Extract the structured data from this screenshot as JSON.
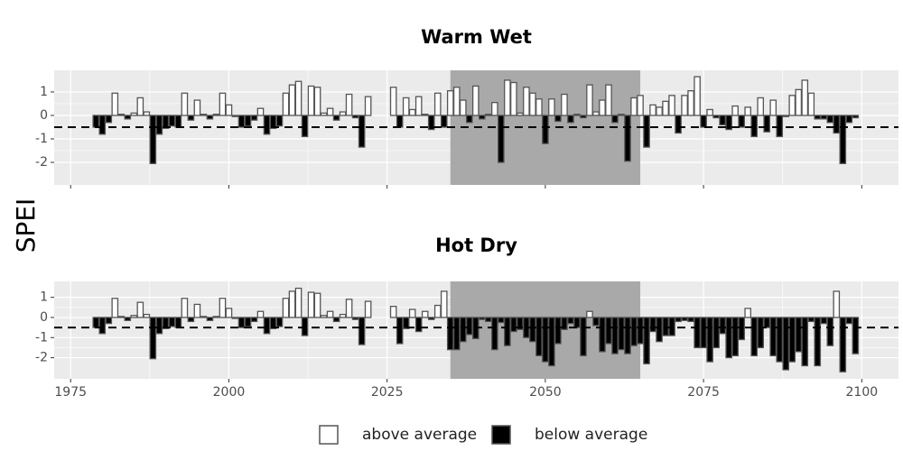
{
  "y_label": "SPEI",
  "legend": [
    {
      "name": "above average",
      "color": "#ffffff"
    },
    {
      "name": "below average",
      "color": "#000000"
    }
  ],
  "chart_data": [
    {
      "type": "bar",
      "title": "Warm Wet",
      "x": [
        1979,
        1980,
        1981,
        1982,
        1983,
        1984,
        1985,
        1986,
        1987,
        1988,
        1989,
        1990,
        1991,
        1992,
        1993,
        1994,
        1995,
        1996,
        1997,
        1998,
        1999,
        2000,
        2001,
        2002,
        2003,
        2004,
        2005,
        2006,
        2007,
        2008,
        2009,
        2010,
        2011,
        2012,
        2013,
        2014,
        2015,
        2016,
        2017,
        2018,
        2019,
        2020,
        2021,
        2022,
        2026,
        2027,
        2028,
        2029,
        2030,
        2031,
        2032,
        2033,
        2034,
        2035,
        2036,
        2037,
        2038,
        2039,
        2040,
        2041,
        2042,
        2043,
        2044,
        2045,
        2046,
        2047,
        2048,
        2049,
        2050,
        2051,
        2052,
        2053,
        2054,
        2055,
        2056,
        2057,
        2058,
        2059,
        2060,
        2061,
        2062,
        2063,
        2064,
        2065,
        2066,
        2067,
        2068,
        2069,
        2070,
        2071,
        2072,
        2073,
        2074,
        2075,
        2076,
        2077,
        2078,
        2079,
        2080,
        2081,
        2082,
        2083,
        2084,
        2085,
        2086,
        2087,
        2088,
        2089,
        2090,
        2091,
        2092,
        2093,
        2094,
        2095,
        2096,
        2097,
        2098,
        2099
      ],
      "values": [
        -0.5,
        -0.8,
        -0.3,
        0.95,
        0.05,
        -0.15,
        0.1,
        0.75,
        0.15,
        -2.05,
        -0.8,
        -0.55,
        -0.45,
        -0.5,
        0.95,
        -0.2,
        0.65,
        0.05,
        -0.15,
        0.05,
        0.95,
        0.45,
        -0.05,
        -0.5,
        -0.45,
        -0.2,
        0.3,
        -0.8,
        -0.55,
        -0.45,
        0.95,
        1.3,
        1.45,
        -0.9,
        1.25,
        1.2,
        0.1,
        0.3,
        -0.2,
        0.15,
        0.9,
        -0.1,
        -1.35,
        0.8,
        1.2,
        -0.5,
        0.75,
        0.25,
        0.8,
        0.05,
        -0.6,
        0.95,
        -0.5,
        1.05,
        1.2,
        0.65,
        -0.3,
        1.25,
        -0.15,
        0.05,
        0.55,
        -2.0,
        1.5,
        1.4,
        0.1,
        1.2,
        0.95,
        0.7,
        -1.2,
        0.7,
        -0.25,
        0.9,
        -0.3,
        0.05,
        -0.1,
        1.3,
        0.15,
        0.65,
        1.3,
        -0.3,
        0.05,
        -1.95,
        0.75,
        0.85,
        -1.35,
        0.45,
        0.35,
        0.6,
        0.85,
        -0.75,
        0.85,
        1.05,
        1.65,
        -0.5,
        0.25,
        -0.1,
        -0.4,
        -0.6,
        0.4,
        -0.5,
        0.35,
        -0.9,
        0.75,
        -0.7,
        0.65,
        -0.9,
        -0.05,
        0.85,
        1.1,
        1.5,
        0.95,
        -0.15,
        -0.15,
        -0.3,
        -0.75,
        -2.05,
        -0.3,
        -0.1
      ],
      "xlim": [
        1972.4,
        2105.8
      ],
      "xticks": [
        1975,
        2000,
        2025,
        2050,
        2075,
        2100
      ],
      "ylim": [
        -2.96,
        1.92
      ],
      "yticks": [
        -2,
        -1,
        0,
        1
      ],
      "hline": -0.5,
      "shade": [
        2035,
        2065
      ],
      "grid": true
    },
    {
      "type": "bar",
      "title": "Hot Dry",
      "x": [
        1979,
        1980,
        1981,
        1982,
        1983,
        1984,
        1985,
        1986,
        1987,
        1988,
        1989,
        1990,
        1991,
        1992,
        1993,
        1994,
        1995,
        1996,
        1997,
        1998,
        1999,
        2000,
        2001,
        2002,
        2003,
        2004,
        2005,
        2006,
        2007,
        2008,
        2009,
        2010,
        2011,
        2012,
        2013,
        2014,
        2015,
        2016,
        2017,
        2018,
        2019,
        2020,
        2021,
        2022,
        2026,
        2027,
        2028,
        2029,
        2030,
        2031,
        2032,
        2033,
        2034,
        2035,
        2036,
        2037,
        2038,
        2039,
        2040,
        2041,
        2042,
        2043,
        2044,
        2045,
        2046,
        2047,
        2048,
        2049,
        2050,
        2051,
        2052,
        2053,
        2054,
        2055,
        2056,
        2057,
        2058,
        2059,
        2060,
        2061,
        2062,
        2063,
        2064,
        2065,
        2066,
        2067,
        2068,
        2069,
        2070,
        2071,
        2072,
        2073,
        2074,
        2075,
        2076,
        2077,
        2078,
        2079,
        2080,
        2081,
        2082,
        2083,
        2084,
        2085,
        2086,
        2087,
        2088,
        2089,
        2090,
        2091,
        2092,
        2093,
        2094,
        2095,
        2096,
        2097,
        2098,
        2099
      ],
      "values": [
        -0.5,
        -0.8,
        -0.3,
        0.95,
        0.05,
        -0.15,
        0.1,
        0.75,
        0.15,
        -2.05,
        -0.8,
        -0.55,
        -0.45,
        -0.5,
        0.95,
        -0.2,
        0.65,
        0.05,
        -0.15,
        0.05,
        0.95,
        0.45,
        -0.05,
        -0.5,
        -0.45,
        -0.2,
        0.3,
        -0.8,
        -0.55,
        -0.45,
        0.95,
        1.3,
        1.45,
        -0.9,
        1.25,
        1.2,
        0.1,
        0.3,
        -0.2,
        0.15,
        0.9,
        -0.1,
        -1.35,
        0.8,
        0.55,
        -1.3,
        -0.55,
        0.4,
        -0.7,
        0.3,
        -0.1,
        0.6,
        1.3,
        -1.6,
        -1.6,
        -1.2,
        -0.85,
        -1.05,
        -0.1,
        -0.2,
        -1.6,
        -0.25,
        -1.4,
        -0.7,
        -0.6,
        -1.0,
        -1.2,
        -1.9,
        -2.2,
        -2.4,
        -1.3,
        -0.6,
        -0.3,
        -0.5,
        -1.9,
        0.3,
        -0.4,
        -1.7,
        -1.3,
        -1.8,
        -1.6,
        -1.8,
        -1.4,
        -1.3,
        -2.3,
        -0.7,
        -1.2,
        -0.9,
        -0.9,
        -0.2,
        -0.15,
        -0.2,
        -1.5,
        -1.5,
        -2.2,
        -1.5,
        -0.8,
        -2.0,
        -1.9,
        -1.1,
        0.45,
        -1.9,
        -1.5,
        -0.5,
        -1.9,
        -2.2,
        -2.6,
        -2.2,
        -1.7,
        -2.4,
        -0.2,
        -2.4,
        -0.3,
        -1.4,
        1.3,
        -2.7,
        -0.3,
        -1.8
      ],
      "xlim": [
        1972.4,
        2105.8
      ],
      "xticks": [
        1975,
        2000,
        2025,
        2050,
        2075,
        2100
      ],
      "ylim": [
        -3.05,
        1.79
      ],
      "yticks": [
        -2,
        -1,
        0,
        1
      ],
      "hline": -0.5,
      "shade": [
        2035,
        2065
      ],
      "grid": true
    }
  ]
}
